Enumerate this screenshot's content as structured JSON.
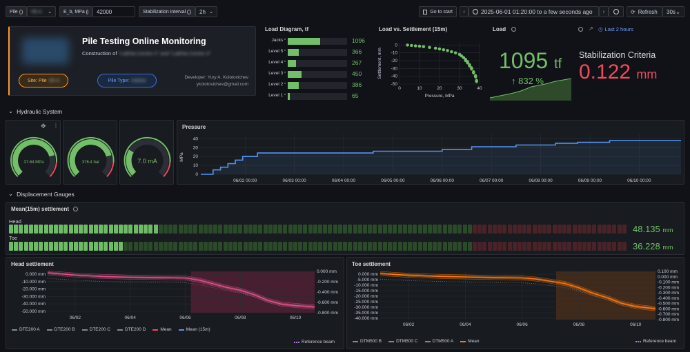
{
  "toolbar": {
    "pile_label": "Pile",
    "pile_value": "0B-A",
    "eb_label": "E_b, MPa",
    "eb_value": "42000",
    "stab_label": "Stabilization interval",
    "stab_value": "2h",
    "goto_label": "Go to start",
    "time_range": "2025-06-01 01:20:00 to a few seconds ago",
    "refresh_label": "Refresh",
    "refresh_interval": "30s"
  },
  "header": {
    "title": "Pile Testing Online Monitoring",
    "construction_prefix": "Construction of",
    "construction_blur": "\"Lakhta Centre 2\" and \"Lakhta Centre 3\"",
    "site_label": "Site: Pile",
    "site_blur": "0B-A",
    "type_label": "Pile Type:",
    "type_blur": "Hollow",
    "developer": "Developer: Yury A. Kolotovichev",
    "email": "ykolotovichev@gmail.com"
  },
  "load_diagram": {
    "title": "Load Diagram, tf",
    "rows": [
      {
        "label": "Jacks",
        "value": "1096",
        "fraction": 0.55
      },
      {
        "label": "Level 5",
        "value": "366",
        "fraction": 0.18
      },
      {
        "label": "Level 4",
        "value": "267",
        "fraction": 0.14
      },
      {
        "label": "Level 3",
        "value": "450",
        "fraction": 0.23
      },
      {
        "label": "Level 2",
        "value": "386",
        "fraction": 0.19
      },
      {
        "label": "Level 1",
        "value": "65",
        "fraction": 0.04
      }
    ],
    "mark": "*"
  },
  "load_settlement": {
    "title": "Load vs. Settlement (15m)",
    "xlabel": "Pressure, MPa",
    "ylabel": "Settlement, mm"
  },
  "load_stat": {
    "title": "Load",
    "value": "1095",
    "unit": "tf",
    "change": "832 %",
    "time_link": "Last 2 hours"
  },
  "stabilization": {
    "title": "Stabilization Criteria",
    "value": "0.122",
    "unit": "mm"
  },
  "hydraulic": {
    "section_title": "Hydraulic System",
    "gauges": [
      {
        "value": "37.64 MPa",
        "fraction": 0.78
      },
      {
        "value": "376.4 bar",
        "fraction": 0.78
      },
      {
        "value": "7.0 mA",
        "fraction": 0.28
      }
    ],
    "pressure_title": "Pressure",
    "pressure_ylabel": "MPa"
  },
  "displacement": {
    "section_title": "Displacement Gauges",
    "mean_title": "Mean(15m) settlement",
    "head_label": "Head",
    "head_value": "48.135",
    "toe_label": "Toe",
    "toe_value": "36.228",
    "unit": "mm",
    "head_fraction": 0.24,
    "toe_fraction": 0.18
  },
  "head_settlement": {
    "title": "Head settlement",
    "legend": [
      "DTE200 A",
      "DTE200 B",
      "DTE200 C",
      "DTE200 D",
      "Mean",
      "Mean (15m)"
    ],
    "ref_beam": "Reference beam"
  },
  "toe_settlement": {
    "title": "Toe settlement",
    "legend": [
      "DTM500 B",
      "DTM500 C",
      "DTM500 A",
      "Mean"
    ],
    "ref_beam": "Reference beam"
  },
  "colors": {
    "green": "#73bf69",
    "red": "#f2495c",
    "orange": "#ff780a",
    "blue": "#5794f2",
    "pink": "#e0528c"
  },
  "chart_data": [
    {
      "type": "scatter",
      "title": "Load vs. Settlement (15m)",
      "xlabel": "Pressure, MPa",
      "ylabel": "Settlement, mm",
      "xlim": [
        0,
        40
      ],
      "ylim": [
        -50,
        3
      ],
      "xticks": [
        "0",
        "10",
        "20",
        "30",
        "40"
      ],
      "yticks": [
        "0",
        "-10",
        "-20",
        "-30",
        "-40",
        "-50"
      ],
      "x": [
        4,
        6,
        8,
        10,
        12,
        15,
        18,
        20,
        22,
        24,
        26,
        28,
        30,
        31,
        32,
        33,
        34,
        35,
        36,
        37,
        38,
        38.5
      ],
      "y": [
        0,
        -0.5,
        -1,
        -1.5,
        -2,
        -3,
        -4,
        -5,
        -6,
        -7,
        -8.5,
        -10,
        -12,
        -14,
        -16,
        -19,
        -22,
        -26,
        -30,
        -35,
        -40,
        -46
      ]
    },
    {
      "type": "line",
      "title": "Pressure",
      "ylabel": "MPa",
      "ylim": [
        0,
        45
      ],
      "yticks": [
        "0",
        "10",
        "20",
        "30",
        "40"
      ],
      "xticks": [
        "06/02 00:00",
        "06/03 00:00",
        "06/04 00:00",
        "06/05 00:00",
        "06/06 00:00",
        "06/07 00:00",
        "06/08 00:00",
        "06/09 00:00",
        "06/10 00:00"
      ],
      "xlim": [
        1.1,
        10.85
      ],
      "x": [
        1.1,
        1.35,
        1.35,
        1.5,
        1.5,
        1.65,
        1.65,
        1.8,
        1.8,
        1.95,
        1.95,
        2.25,
        2.25,
        4.6,
        4.6,
        6.0,
        6.0,
        6.6,
        6.6,
        7.5,
        7.5,
        8.3,
        8.3,
        8.75,
        8.75,
        9.4,
        9.4,
        10.85
      ],
      "y": [
        0,
        0,
        5,
        5,
        8,
        8,
        12,
        12,
        16,
        16,
        20,
        20,
        24,
        24,
        26,
        26,
        28,
        28,
        31,
        31,
        33,
        33,
        35,
        35,
        36,
        36,
        38,
        38
      ]
    },
    {
      "type": "line",
      "title": "Head settlement",
      "yticks_left": [
        "0.000 mm",
        "-10.000 mm",
        "-20.000 mm",
        "-30.000 mm",
        "-40.000 mm",
        "-50.000 mm"
      ],
      "yticks_right": [
        "0.000 mm",
        "-0.200 mm",
        "-0.400 mm",
        "-0.600 mm",
        "-0.800 mm"
      ],
      "ylim": [
        -55,
        2
      ],
      "xticks": [
        "06/02",
        "06/04",
        "06/06",
        "06/08",
        "06/10"
      ],
      "xlim": [
        1.0,
        10.7
      ],
      "series": [
        {
          "name": "Mean",
          "x": [
            1.0,
            2.0,
            3.0,
            4.0,
            5.0,
            6.0,
            6.5,
            7.0,
            7.5,
            8.0,
            8.5,
            9.0,
            9.5,
            10.0,
            10.7
          ],
          "y": [
            0,
            -3,
            -5,
            -6,
            -6.5,
            -7,
            -10,
            -15,
            -20,
            -24,
            -30,
            -38,
            -43,
            -45,
            -47
          ]
        }
      ]
    },
    {
      "type": "line",
      "title": "Toe settlement",
      "yticks_left": [
        "0.000 mm",
        "-5.000 mm",
        "-10.000 mm",
        "-15.000 mm",
        "-20.000 mm",
        "-25.000 mm",
        "-30.000 mm",
        "-35.000 mm",
        "-40.000 mm"
      ],
      "yticks_right": [
        "0.100 mm",
        "0.000 mm",
        "-0.100 mm",
        "-0.200 mm",
        "-0.300 mm",
        "-0.400 mm",
        "-0.500 mm",
        "-0.600 mm",
        "-0.700 mm",
        "-0.800 mm"
      ],
      "ylim": [
        -42,
        2
      ],
      "xticks": [
        "06/02",
        "06/04",
        "06/06",
        "06/08",
        "06/10"
      ],
      "xlim": [
        1.0,
        10.7
      ],
      "series": [
        {
          "name": "Mean",
          "x": [
            1.0,
            2.0,
            3.0,
            4.0,
            5.0,
            6.0,
            6.5,
            7.0,
            7.5,
            8.0,
            8.5,
            9.0,
            9.5,
            10.0,
            10.7
          ],
          "y": [
            0,
            -1.5,
            -2.5,
            -3,
            -3.5,
            -4,
            -5,
            -7,
            -9,
            -13,
            -18,
            -22,
            -27,
            -30,
            -32
          ]
        }
      ]
    }
  ]
}
